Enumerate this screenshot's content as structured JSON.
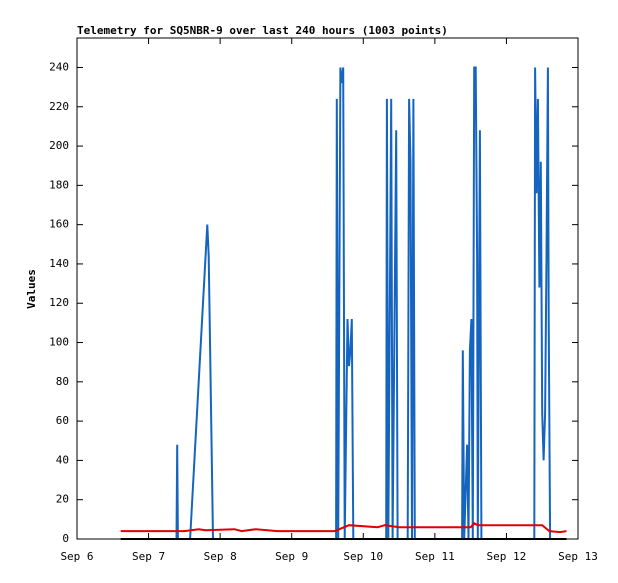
{
  "chart_data": {
    "type": "line",
    "title": "Telemetry for SQ5NBR-9 over last 240 hours (1003 points)",
    "ylabel": "Values",
    "xlim": [
      0,
      7
    ],
    "xticks": [
      {
        "value": 0,
        "label": "Sep 6"
      },
      {
        "value": 1,
        "label": "Sep 7"
      },
      {
        "value": 2,
        "label": "Sep 8"
      },
      {
        "value": 3,
        "label": "Sep 9"
      },
      {
        "value": 4,
        "label": "Sep 10"
      },
      {
        "value": 5,
        "label": "Sep 11"
      },
      {
        "value": 6,
        "label": "Sep 12"
      },
      {
        "value": 7,
        "label": "Sep 13"
      }
    ],
    "ylim": [
      0,
      255
    ],
    "yticks": [
      0,
      20,
      40,
      60,
      80,
      100,
      120,
      140,
      160,
      180,
      200,
      220,
      240
    ],
    "series": [
      {
        "color": "#1565c0",
        "x": [
          1.39,
          1.4,
          1.41,
          1.58,
          1.82,
          1.84,
          1.9,
          3.62,
          3.63,
          3.65,
          3.68,
          3.7,
          3.72,
          3.74,
          3.78,
          3.8,
          3.82,
          3.84,
          3.86,
          4.32,
          4.33,
          4.35,
          4.39,
          4.41,
          4.46,
          4.48,
          4.62,
          4.64,
          4.66,
          4.68,
          4.7,
          4.72,
          5.38,
          5.39,
          5.41,
          5.45,
          5.47,
          5.49,
          5.51,
          5.53,
          5.55,
          5.57,
          5.59,
          5.6,
          5.63,
          5.65,
          6.39,
          6.4,
          6.42,
          6.44,
          6.46,
          6.48,
          6.5,
          6.52,
          6.54,
          6.56,
          6.58,
          6.59,
          6.61
        ],
        "values": [
          0,
          48,
          0,
          0,
          160,
          144,
          0,
          0,
          224,
          0,
          240,
          232,
          240,
          0,
          112,
          88,
          96,
          112,
          0,
          0,
          224,
          0,
          224,
          0,
          208,
          0,
          0,
          224,
          192,
          0,
          224,
          0,
          0,
          96,
          0,
          48,
          0,
          96,
          112,
          0,
          240,
          240,
          144,
          0,
          208,
          0,
          0,
          240,
          176,
          224,
          128,
          192,
          64,
          40,
          64,
          144,
          240,
          112,
          0
        ]
      },
      {
        "color": "#e00000",
        "x": [
          0.61,
          1.5,
          1.7,
          1.8,
          2.2,
          2.3,
          2.5,
          2.8,
          3.6,
          3.8,
          4.2,
          4.3,
          4.5,
          4.7,
          5.5,
          5.55,
          5.6,
          6.5,
          6.6,
          6.75,
          6.84
        ],
        "values": [
          4,
          4,
          5,
          4.5,
          5,
          4,
          5,
          4,
          4,
          7,
          6,
          7,
          6,
          6,
          6,
          8,
          7,
          7,
          4,
          3.5,
          4
        ]
      },
      {
        "color": "#000000",
        "x": [
          0.61,
          6.84
        ],
        "values": [
          0,
          0
        ]
      }
    ]
  }
}
